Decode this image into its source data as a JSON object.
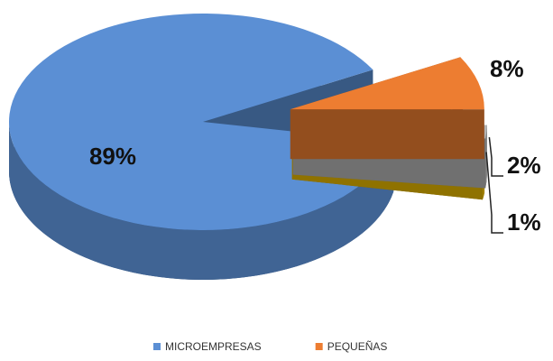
{
  "chart_data": {
    "type": "pie3d",
    "categories": [
      "MICROEMPRESAS",
      "PEQUEÑAS",
      null,
      null
    ],
    "values": [
      89,
      8,
      2,
      1
    ],
    "value_labels": [
      "89%",
      "8%",
      "2%",
      "1%"
    ],
    "colors": [
      "#5b8fd4",
      "#ed7d31",
      "#b4b4b4",
      "#e6b800"
    ],
    "legend": "bottom"
  }
}
